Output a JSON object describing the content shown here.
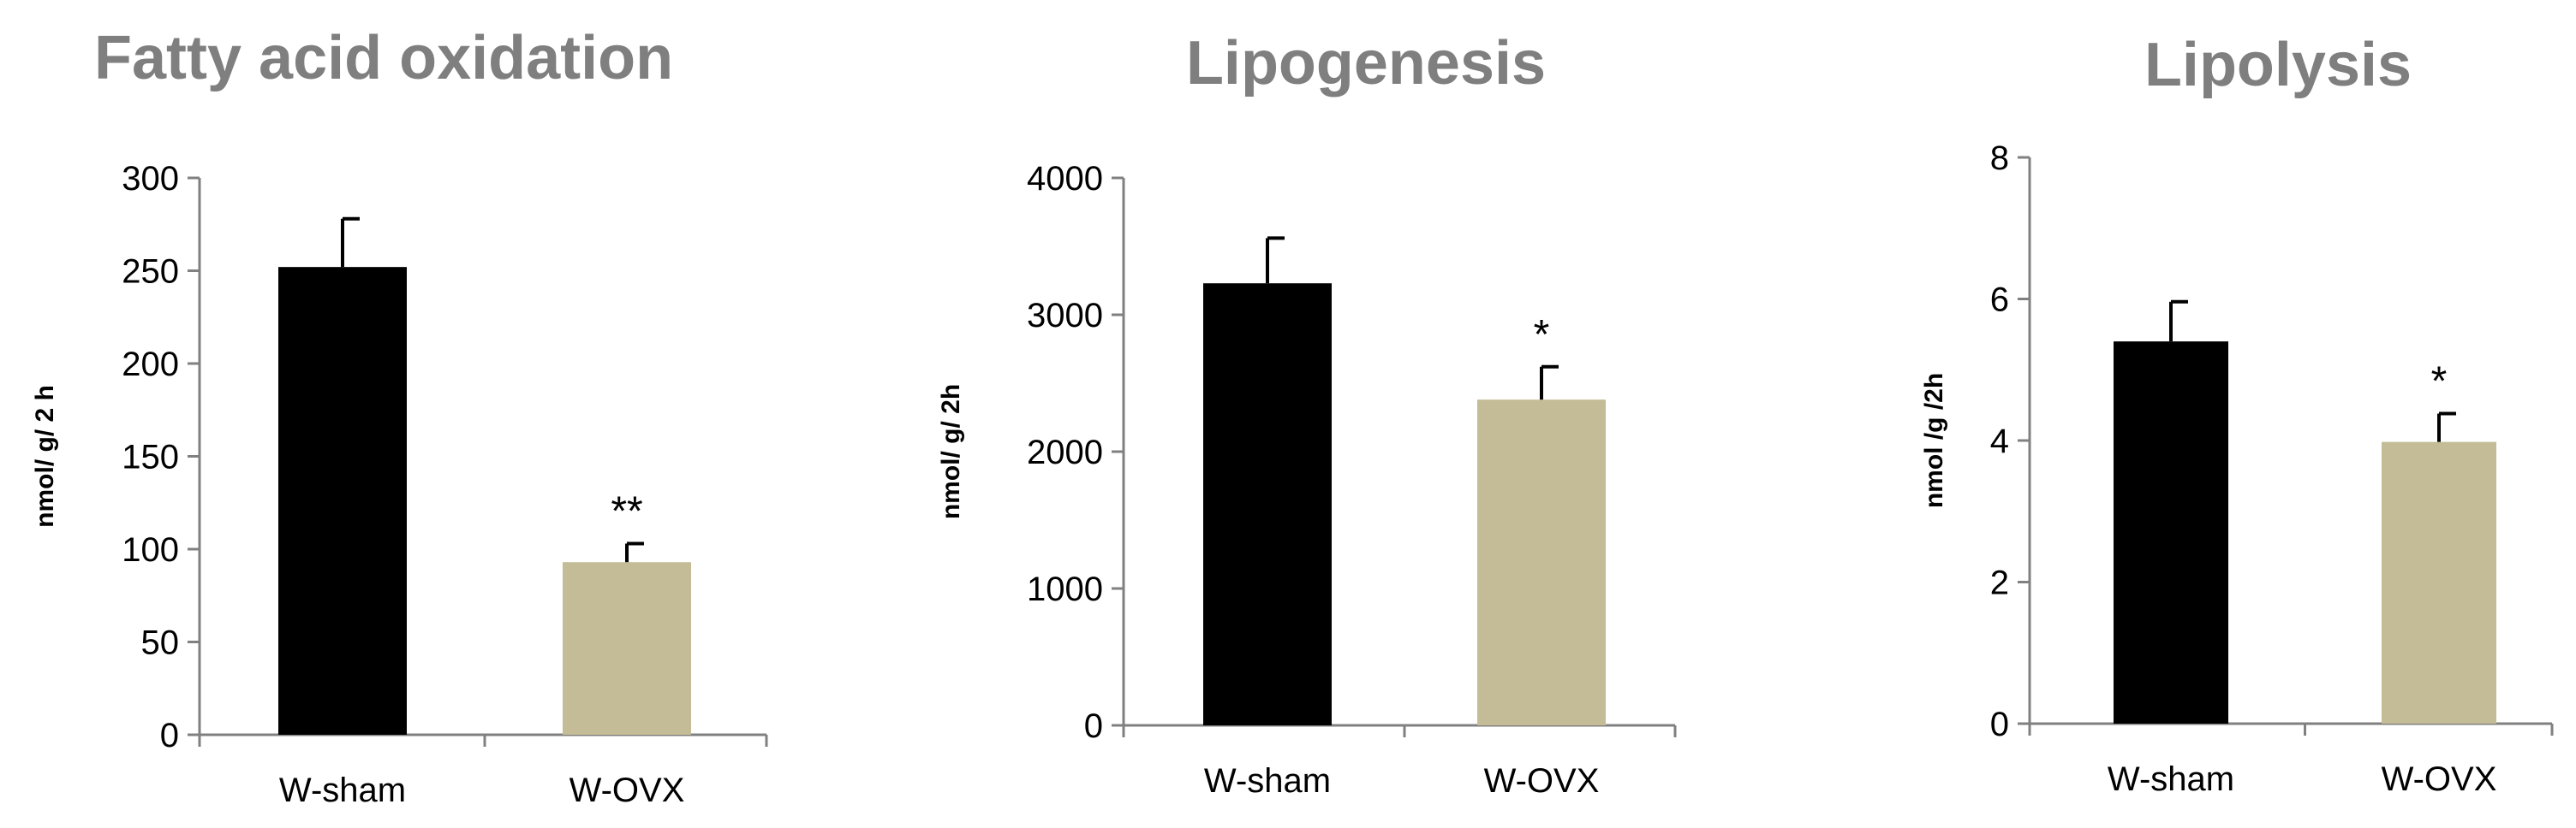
{
  "chart_data": [
    {
      "type": "bar",
      "title": "Fatty acid oxidation",
      "ylabel": "nmol/ g/ 2 h",
      "xlabel": "",
      "categories": [
        "W-sham",
        "W-OVX"
      ],
      "series": [
        {
          "values": [
            252,
            93
          ],
          "errors": [
            26,
            10
          ]
        }
      ],
      "bar_colors": [
        "#000000",
        "#c4bc96"
      ],
      "annotations": [
        "",
        "**"
      ],
      "ylim": [
        0,
        300
      ],
      "yticks": [
        0,
        50,
        100,
        150,
        200,
        250,
        300
      ],
      "grid": false,
      "legend": "none"
    },
    {
      "type": "bar",
      "title": "Lipogenesis",
      "ylabel": "nmol/ g/ 2h",
      "xlabel": "",
      "categories": [
        "W-sham",
        "W-OVX"
      ],
      "series": [
        {
          "values": [
            3230,
            2380
          ],
          "errors": [
            330,
            240
          ]
        }
      ],
      "bar_colors": [
        "#000000",
        "#c4bc96"
      ],
      "annotations": [
        "",
        "*"
      ],
      "ylim": [
        0,
        4000
      ],
      "yticks": [
        0,
        1000,
        2000,
        3000,
        4000
      ],
      "grid": false,
      "legend": "none"
    },
    {
      "type": "bar",
      "title": "Lipolysis",
      "ylabel": "nmol /g /2h",
      "xlabel": "",
      "categories": [
        "W-sham",
        "W-OVX"
      ],
      "series": [
        {
          "values": [
            5.4,
            3.98
          ],
          "errors": [
            0.56,
            0.4
          ]
        }
      ],
      "bar_colors": [
        "#000000",
        "#c4bc96"
      ],
      "annotations": [
        "",
        "*"
      ],
      "ylim": [
        0,
        8
      ],
      "yticks": [
        0,
        2,
        4,
        6,
        8
      ],
      "grid": false,
      "legend": "none"
    }
  ]
}
